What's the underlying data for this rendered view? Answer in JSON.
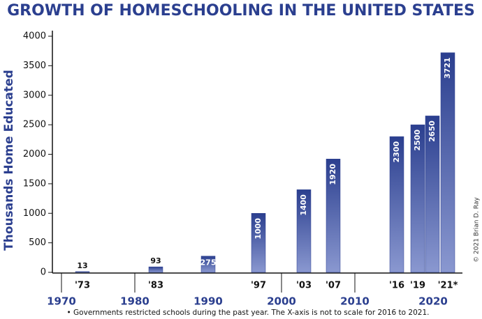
{
  "chart_data": {
    "type": "bar",
    "title": "GROWTH OF HOMESCHOOLING IN THE UNITED STATES",
    "ylabel": "Thousands Home Educated",
    "footnote": "• Governments restricted schools during the past year. The X-axis is not to scale for 2016 to 2021.",
    "credit": "© 2021 Brian D. Ray",
    "categories": [
      "'73",
      "'83",
      null,
      "'97",
      "'03",
      "'07",
      "'16",
      "'19",
      null,
      "'21*"
    ],
    "values": [
      13,
      93,
      275,
      1000,
      1400,
      1920,
      2300,
      2500,
      2650,
      3721
    ],
    "decade_labels": [
      "1970",
      "1980",
      "1990",
      "2000",
      "2010",
      "2020"
    ],
    "color": "#2b3f8f",
    "ylim": [
      0,
      4000
    ],
    "yticks": [
      0,
      500,
      1000,
      1500,
      2000,
      2500,
      3000,
      3500,
      4000
    ]
  }
}
